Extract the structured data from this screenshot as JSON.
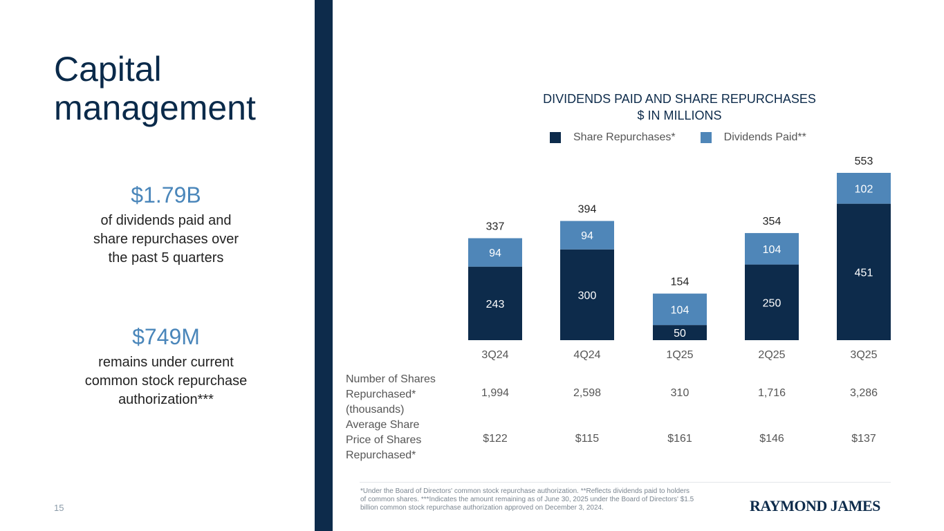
{
  "page": {
    "title_line1": "Capital",
    "title_line2": "management",
    "stats": [
      {
        "value": "$1.79B",
        "desc_lines": [
          "of dividends paid and",
          "share repurchases over",
          "the past 5 quarters"
        ]
      },
      {
        "value": "$749M",
        "desc_lines": [
          "remains under current",
          "common stock repurchase",
          "authorization***"
        ]
      }
    ],
    "page_number": "15",
    "logo_text": "RAYMOND JAMES"
  },
  "chart_data": {
    "type": "bar",
    "stacked": true,
    "title_line1": "DIVIDENDS PAID AND SHARE REPURCHASES",
    "title_line2": "$ IN MILLIONS",
    "categories": [
      "3Q24",
      "4Q24",
      "1Q25",
      "2Q25",
      "3Q25"
    ],
    "series": [
      {
        "name": "Share Repurchases*",
        "color": "#0d2b4b",
        "values": [
          243,
          300,
          50,
          250,
          451
        ]
      },
      {
        "name": "Dividends Paid**",
        "color": "#4f86b8",
        "values": [
          94,
          94,
          104,
          104,
          102
        ]
      }
    ],
    "totals": [
      337,
      394,
      154,
      354,
      553
    ],
    "ylim": [
      0,
      553
    ]
  },
  "table": {
    "rows": [
      {
        "label_lines": [
          "Number of Shares",
          "Repurchased*",
          "(thousands)"
        ],
        "values": [
          "1,994",
          "2,598",
          "310",
          "1,716",
          "3,286"
        ]
      },
      {
        "label_lines": [
          "Average Share",
          "Price of Shares",
          "Repurchased*"
        ],
        "values": [
          "$122",
          "$115",
          "$161",
          "$146",
          "$137"
        ]
      }
    ]
  },
  "footnote": {
    "lines": [
      "*Under the Board of Directors' common stock repurchase authorization. **Reflects dividends paid to holders",
      "of common shares. ***Indicates the amount remaining as of June 30, 2025 under the Board of Directors' $1.5",
      "billion common stock repurchase authorization approved on December 3, 2024."
    ]
  }
}
